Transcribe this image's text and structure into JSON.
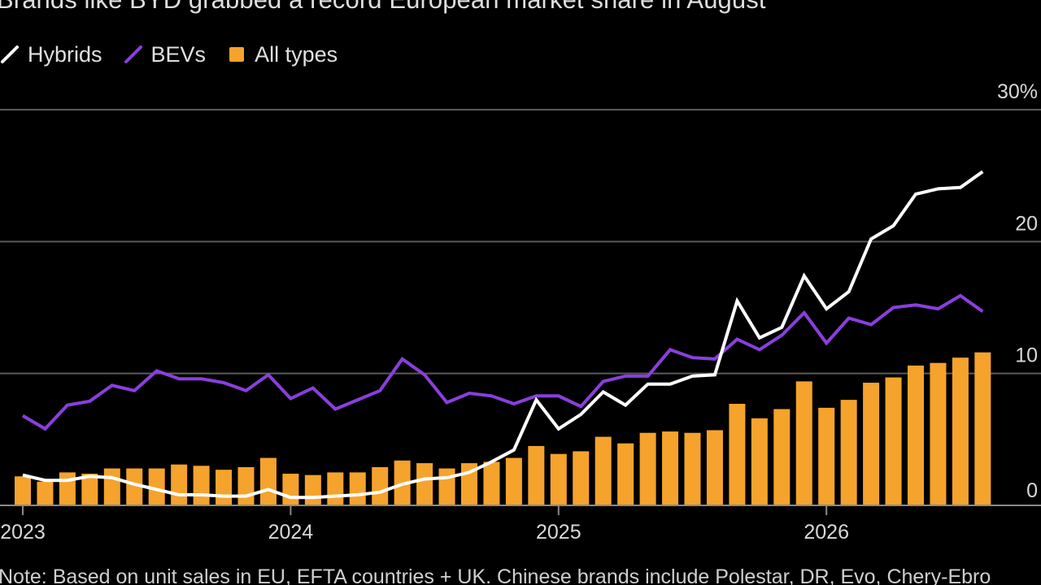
{
  "title": "Brands like BYD grabbed a record European market share in August",
  "legend": [
    {
      "label": "Hybrids",
      "color": "#ffffff",
      "marker": "line"
    },
    {
      "label": "BEVs",
      "color": "#8a3fdd",
      "marker": "line"
    },
    {
      "label": "All types",
      "color": "#f5a32c",
      "marker": "square"
    }
  ],
  "note": "Note: Based on unit sales in EU, EFTA countries + UK. Chinese brands include Polestar, DR, Evo, Chery-Ebro",
  "chart_data": {
    "type": "bar",
    "title": "Brands like BYD grabbed a record European market share in August",
    "x_start": "2023-01",
    "x_labels": [
      "2023",
      "2024",
      "2025",
      "2026"
    ],
    "y_ticks": [
      "30%",
      "20",
      "10",
      "0"
    ],
    "y_tick_values": [
      30,
      20,
      10,
      0
    ],
    "ylim": [
      0,
      30
    ],
    "grid": true,
    "legend_position": "top-left",
    "series": [
      {
        "name": "All types",
        "kind": "bar",
        "color": "#f5a32c",
        "values": [
          2.2,
          1.8,
          2.5,
          2.4,
          2.8,
          2.8,
          2.8,
          3.1,
          3.0,
          2.7,
          2.9,
          3.6,
          2.4,
          2.3,
          2.5,
          2.5,
          2.9,
          3.4,
          3.2,
          2.8,
          3.2,
          3.3,
          3.6,
          4.5,
          3.9,
          4.1,
          5.2,
          4.7,
          5.5,
          5.6,
          5.5,
          5.7,
          7.7,
          6.6,
          7.3,
          9.4,
          7.4,
          8.0,
          9.3,
          9.7,
          10.6,
          10.8,
          11.2,
          11.6
        ]
      },
      {
        "name": "Hybrids",
        "kind": "line",
        "color": "#ffffff",
        "values": [
          2.3,
          1.9,
          1.9,
          2.2,
          2.1,
          1.6,
          1.2,
          0.8,
          0.8,
          0.7,
          0.7,
          1.2,
          0.6,
          0.6,
          0.7,
          0.8,
          1.0,
          1.6,
          2.0,
          2.1,
          2.5,
          3.3,
          4.2,
          8.0,
          5.8,
          6.9,
          8.6,
          7.6,
          9.2,
          9.2,
          9.8,
          9.9,
          15.5,
          12.7,
          13.5,
          17.4,
          14.9,
          16.2,
          20.2,
          21.2,
          23.6,
          24.0,
          24.1,
          25.3
        ]
      },
      {
        "name": "BEVs",
        "kind": "line",
        "color": "#8a3fdd",
        "values": [
          6.8,
          5.8,
          7.6,
          7.9,
          9.1,
          8.7,
          10.2,
          9.6,
          9.6,
          9.3,
          8.7,
          9.9,
          8.1,
          8.9,
          7.3,
          8.0,
          8.7,
          11.1,
          9.9,
          7.8,
          8.5,
          8.3,
          7.7,
          8.3,
          8.3,
          7.5,
          9.4,
          9.8,
          9.8,
          11.8,
          11.2,
          11.1,
          12.6,
          11.8,
          12.9,
          14.6,
          12.3,
          14.2,
          13.7,
          15.0,
          15.2,
          14.9,
          15.9,
          14.7
        ]
      }
    ]
  }
}
